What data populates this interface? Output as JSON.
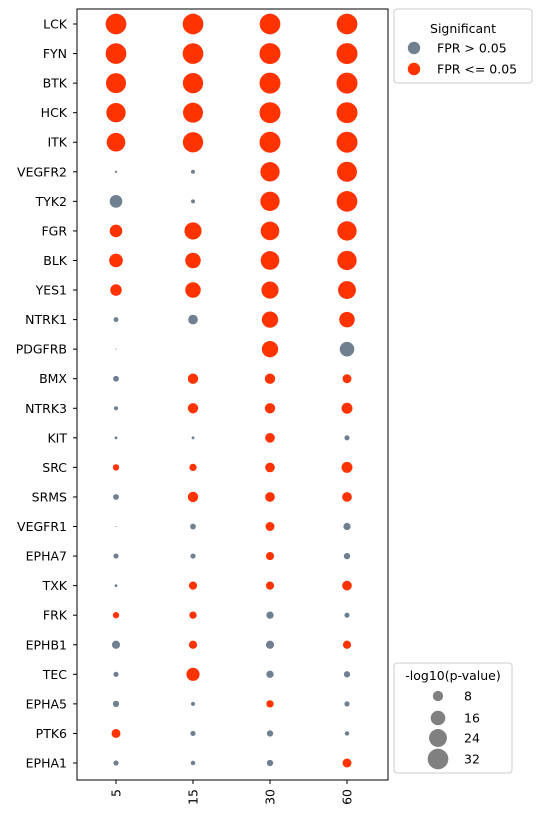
{
  "chart_data": {
    "type": "scatter",
    "x_categories": [
      "5",
      "15",
      "30",
      "60"
    ],
    "y_categories": [
      "LCK",
      "FYN",
      "BTK",
      "HCK",
      "ITK",
      "VEGFR2",
      "TYK2",
      "FGR",
      "BLK",
      "YES1",
      "NTRK1",
      "PDGFRB",
      "BMX",
      "NTRK3",
      "KIT",
      "SRC",
      "SRMS",
      "VEGFR1",
      "EPHA7",
      "TXK",
      "FRK",
      "EPHB1",
      "TEC",
      "EPHA5",
      "PTK6",
      "EPHA1"
    ],
    "size_metric": "-log10(p-value)",
    "size_max": 35,
    "colors": {
      "FPR > 0.05": "#708090",
      "FPR <= 0.05": "#ff3300"
    },
    "points": [
      [
        "LCK",
        "5",
        32,
        true
      ],
      [
        "LCK",
        "15",
        32,
        true
      ],
      [
        "LCK",
        "30",
        32,
        true
      ],
      [
        "LCK",
        "60",
        32,
        true
      ],
      [
        "FYN",
        "5",
        32,
        true
      ],
      [
        "FYN",
        "15",
        32,
        true
      ],
      [
        "FYN",
        "30",
        33,
        true
      ],
      [
        "FYN",
        "60",
        33,
        true
      ],
      [
        "BTK",
        "5",
        30,
        true
      ],
      [
        "BTK",
        "15",
        31,
        true
      ],
      [
        "BTK",
        "30",
        33,
        true
      ],
      [
        "BTK",
        "60",
        33,
        true
      ],
      [
        "HCK",
        "5",
        28,
        true
      ],
      [
        "HCK",
        "15",
        30,
        true
      ],
      [
        "HCK",
        "30",
        33,
        true
      ],
      [
        "HCK",
        "60",
        33,
        true
      ],
      [
        "ITK",
        "5",
        26,
        true
      ],
      [
        "ITK",
        "15",
        31,
        true
      ],
      [
        "ITK",
        "30",
        33,
        true
      ],
      [
        "ITK",
        "60",
        33,
        true
      ],
      [
        "VEGFR2",
        "5",
        0.4,
        false
      ],
      [
        "VEGFR2",
        "15",
        1.2,
        false
      ],
      [
        "VEGFR2",
        "30",
        28,
        true
      ],
      [
        "VEGFR2",
        "60",
        30,
        true
      ],
      [
        "TYK2",
        "5",
        12,
        false
      ],
      [
        "TYK2",
        "15",
        1.2,
        false
      ],
      [
        "TYK2",
        "30",
        28,
        true
      ],
      [
        "TYK2",
        "60",
        32,
        true
      ],
      [
        "FGR",
        "5",
        12,
        true
      ],
      [
        "FGR",
        "15",
        22,
        true
      ],
      [
        "FGR",
        "30",
        26,
        true
      ],
      [
        "FGR",
        "60",
        28,
        true
      ],
      [
        "BLK",
        "5",
        14,
        true
      ],
      [
        "BLK",
        "15",
        18,
        true
      ],
      [
        "BLK",
        "30",
        26,
        true
      ],
      [
        "BLK",
        "60",
        28,
        true
      ],
      [
        "YES1",
        "5",
        10,
        true
      ],
      [
        "YES1",
        "15",
        18,
        true
      ],
      [
        "YES1",
        "30",
        22,
        true
      ],
      [
        "YES1",
        "60",
        24,
        true
      ],
      [
        "NTRK1",
        "5",
        1.8,
        false
      ],
      [
        "NTRK1",
        "15",
        7,
        false
      ],
      [
        "NTRK1",
        "30",
        20,
        true
      ],
      [
        "NTRK1",
        "60",
        18,
        true
      ],
      [
        "PDGFRB",
        "5",
        0.1,
        false
      ],
      [
        "PDGFRB",
        "30",
        20,
        true
      ],
      [
        "PDGFRB",
        "60",
        16,
        false
      ],
      [
        "BMX",
        "5",
        2.5,
        false
      ],
      [
        "BMX",
        "15",
        8,
        true
      ],
      [
        "BMX",
        "30",
        8,
        true
      ],
      [
        "BMX",
        "60",
        6,
        true
      ],
      [
        "NTRK3",
        "5",
        1.3,
        false
      ],
      [
        "NTRK3",
        "15",
        8,
        true
      ],
      [
        "NTRK3",
        "30",
        8,
        true
      ],
      [
        "NTRK3",
        "60",
        9,
        true
      ],
      [
        "KIT",
        "5",
        0.6,
        false
      ],
      [
        "KIT",
        "15",
        0.6,
        false
      ],
      [
        "KIT",
        "30",
        7,
        true
      ],
      [
        "KIT",
        "60",
        2,
        false
      ],
      [
        "SRC",
        "5",
        3,
        true
      ],
      [
        "SRC",
        "15",
        4,
        true
      ],
      [
        "SRC",
        "30",
        7,
        true
      ],
      [
        "SRC",
        "60",
        9,
        true
      ],
      [
        "SRMS",
        "5",
        2.5,
        false
      ],
      [
        "SRMS",
        "15",
        8,
        true
      ],
      [
        "SRMS",
        "30",
        7,
        true
      ],
      [
        "SRMS",
        "60",
        7,
        true
      ],
      [
        "VEGFR1",
        "5",
        0.1,
        false
      ],
      [
        "VEGFR1",
        "15",
        2.5,
        false
      ],
      [
        "VEGFR1",
        "30",
        6,
        true
      ],
      [
        "VEGFR1",
        "60",
        4,
        false
      ],
      [
        "EPHA7",
        "5",
        2,
        false
      ],
      [
        "EPHA7",
        "15",
        2,
        false
      ],
      [
        "EPHA7",
        "30",
        5,
        true
      ],
      [
        "EPHA7",
        "60",
        3,
        false
      ],
      [
        "TXK",
        "5",
        0.6,
        false
      ],
      [
        "TXK",
        "15",
        5,
        true
      ],
      [
        "TXK",
        "30",
        5,
        true
      ],
      [
        "TXK",
        "60",
        7,
        true
      ],
      [
        "FRK",
        "5",
        3,
        true
      ],
      [
        "FRK",
        "15",
        4,
        true
      ],
      [
        "FRK",
        "30",
        4,
        false
      ],
      [
        "FRK",
        "60",
        2,
        false
      ],
      [
        "EPHB1",
        "5",
        5,
        false
      ],
      [
        "EPHB1",
        "15",
        5,
        true
      ],
      [
        "EPHB1",
        "30",
        5,
        false
      ],
      [
        "EPHB1",
        "60",
        5,
        true
      ],
      [
        "TEC",
        "5",
        2,
        false
      ],
      [
        "TEC",
        "15",
        13,
        true
      ],
      [
        "TEC",
        "30",
        4,
        false
      ],
      [
        "TEC",
        "60",
        3,
        false
      ],
      [
        "EPHA5",
        "5",
        3,
        false
      ],
      [
        "EPHA5",
        "15",
        1.2,
        false
      ],
      [
        "EPHA5",
        "30",
        4,
        true
      ],
      [
        "EPHA5",
        "60",
        2,
        false
      ],
      [
        "PTK6",
        "5",
        6,
        true
      ],
      [
        "PTK6",
        "15",
        2,
        false
      ],
      [
        "PTK6",
        "30",
        3,
        false
      ],
      [
        "PTK6",
        "60",
        1.5,
        false
      ],
      [
        "EPHA1",
        "5",
        2,
        false
      ],
      [
        "EPHA1",
        "15",
        1.5,
        false
      ],
      [
        "EPHA1",
        "30",
        3,
        false
      ],
      [
        "EPHA1",
        "60",
        6,
        true
      ]
    ],
    "legend_color": {
      "title": "Significant",
      "entries": [
        {
          "label": "FPR > 0.05",
          "color": "#708090"
        },
        {
          "label": "FPR <= 0.05",
          "color": "#ff3300"
        }
      ],
      "placement": "outside-top-right"
    },
    "legend_size": {
      "title": "-log10(p-value)",
      "entries": [
        {
          "label": "8",
          "value": 8
        },
        {
          "label": "16",
          "value": 16
        },
        {
          "label": "24",
          "value": 24
        },
        {
          "label": "32",
          "value": 32
        }
      ],
      "placement": "outside-bottom-right"
    },
    "grid": false
  }
}
